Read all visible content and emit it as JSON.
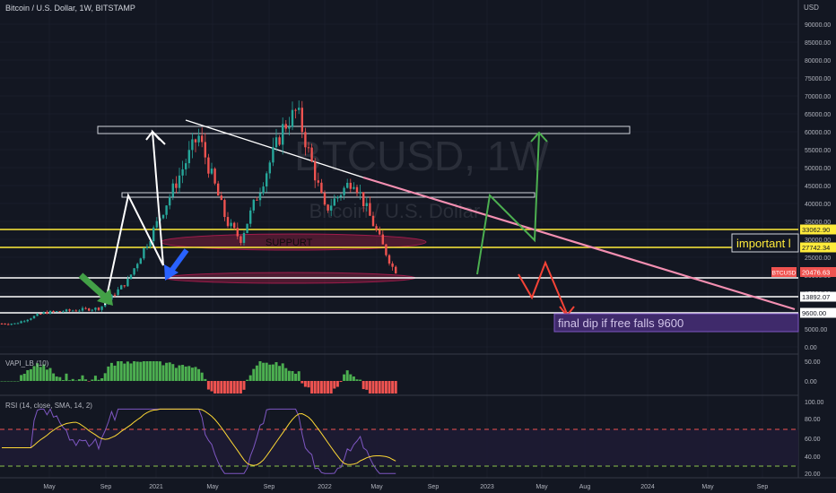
{
  "header": {
    "title": "Bitcoin / U.S. Dollar, 1W, BITSTAMP",
    "currency": "USD"
  },
  "watermark": {
    "symbol": "BTCUSD, 1W",
    "name": "Bitcoin / U.S. Dollar"
  },
  "colors": {
    "background": "#131722",
    "grid": "#1f2433",
    "text": "#b2b5be",
    "up": "#26a69a",
    "up_alt": "#4caf50",
    "down": "#ef5350",
    "level_yellow": "#ffeb3b",
    "level_white": "#ffffff",
    "trendline_pink": "#f48fb1",
    "support_zone": "#7b1e3c",
    "green_arrow": "#43a047",
    "blue_arrow": "#2962ff",
    "note_box": "#3f2a6b"
  },
  "chart_data": {
    "type": "candlestick",
    "symbol": "BTCUSD",
    "interval": "1W",
    "exchange": "BITSTAMP",
    "price_axis": {
      "labels": [
        "90000.00",
        "85000.00",
        "80000.00",
        "75000.00",
        "70000.00",
        "65000.00",
        "60000.00",
        "55000.00",
        "50000.00",
        "45000.00",
        "40000.00",
        "35000.00",
        "30000.00",
        "25000.00",
        "20000.00",
        "15000.00",
        "10000.00",
        "5000.00",
        "0.00"
      ]
    },
    "time_axis": {
      "labels": [
        "May",
        "Sep",
        "2021",
        "May",
        "Sep",
        "2022",
        "May",
        "Sep",
        "2023",
        "May",
        "Aug",
        "2024",
        "May",
        "Sep"
      ]
    },
    "last_price": {
      "label": "BTCUSD",
      "value": "20476.63"
    },
    "level_labels": [
      {
        "value": "33062.90",
        "style": "yellow"
      },
      {
        "value": "27742.34",
        "style": "yellow"
      },
      {
        "value": "13892.07",
        "style": "white"
      },
      {
        "value": "9600.00",
        "style": "white"
      }
    ],
    "annotations": {
      "support_label": "SUPPURT",
      "important_label": "important l",
      "final_dip_label": "final dip if free falls 9600"
    },
    "candles_approx": [
      {
        "t": "2020-03",
        "close": 6500
      },
      {
        "t": "2020-05",
        "close": 9500
      },
      {
        "t": "2020-09",
        "close": 10800
      },
      {
        "t": "2020-11",
        "close": 18500
      },
      {
        "t": "2021-01",
        "close": 34000
      },
      {
        "t": "2021-04",
        "close": 59000
      },
      {
        "t": "2021-06",
        "close": 35000
      },
      {
        "t": "2021-07",
        "close": 30000
      },
      {
        "t": "2021-10",
        "close": 61000
      },
      {
        "t": "2021-11",
        "close": 66000
      },
      {
        "t": "2022-01",
        "close": 38000
      },
      {
        "t": "2022-03",
        "close": 47000
      },
      {
        "t": "2022-05",
        "close": 29000
      },
      {
        "t": "2022-06",
        "close": 20476.63
      }
    ],
    "indicators": [
      {
        "name": "VAPI_LB (10)",
        "axis_labels": [
          "50.00",
          "0.00"
        ]
      },
      {
        "name": "RSI (14, close, SMA, 14, 2)",
        "axis_labels": [
          "100.00",
          "80.00",
          "60.00",
          "40.00",
          "20.00"
        ],
        "bands": [
          70,
          30
        ]
      }
    ]
  }
}
